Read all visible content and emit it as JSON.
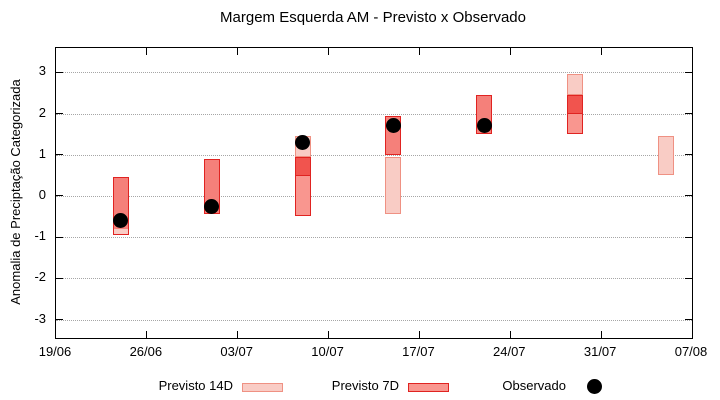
{
  "chart_data": {
    "type": "candlestick",
    "title": "Margem Esquerda AM - Previsto x Observado",
    "ylabel": "Anomalia de Preciptação Categorizada",
    "x_tick_labels": [
      "19/06",
      "26/06",
      "03/07",
      "10/07",
      "17/07",
      "24/07",
      "31/07",
      "07/08"
    ],
    "x_span_days": 49,
    "y_ticks": [
      3,
      2,
      1,
      0,
      -1,
      -2,
      -3
    ],
    "ylim": [
      -3.45,
      3.59
    ],
    "grid": "horizontal dotted lines at integer y values",
    "legend_position": "below plot, horizontal",
    "series": {
      "previsto_14d": [
        {
          "date": "24/06",
          "day": 5,
          "min": -0.95,
          "max": 0.45
        },
        {
          "date": "01/07",
          "day": 12,
          "min": -0.45,
          "max": 0.9
        },
        {
          "date": "08/07",
          "day": 19,
          "min": 0.5,
          "max": 1.45
        },
        {
          "date": "15/07",
          "day": 26,
          "min": -0.45,
          "max": 0.95
        },
        {
          "date": "22/07",
          "day": 33,
          "min": 1.5,
          "max": 2.45
        },
        {
          "date": "29/07",
          "day": 40,
          "min": 2.0,
          "max": 2.95
        },
        {
          "date": "05/08",
          "day": 47,
          "min": 0.5,
          "max": 1.45
        }
      ],
      "previsto_7d": [
        {
          "date": "24/06",
          "day": 5,
          "min": -0.8,
          "max": 0.45
        },
        {
          "date": "01/07",
          "day": 12,
          "min": -0.45,
          "max": 0.9
        },
        {
          "date": "08/07",
          "day": 19,
          "min": -0.5,
          "max": 0.95
        },
        {
          "date": "15/07",
          "day": 26,
          "min": 1.0,
          "max": 1.95
        },
        {
          "date": "22/07",
          "day": 33,
          "min": 1.5,
          "max": 2.45
        },
        {
          "date": "29/07",
          "day": 40,
          "min": 1.5,
          "max": 2.45
        }
      ],
      "observado": [
        {
          "date": "24/06",
          "day": 5,
          "value": -0.6
        },
        {
          "date": "01/07",
          "day": 12,
          "value": -0.25
        },
        {
          "date": "08/07",
          "day": 19,
          "value": 1.3
        },
        {
          "date": "15/07",
          "day": 26,
          "value": 1.7
        },
        {
          "date": "22/07",
          "day": 33,
          "value": 1.7
        }
      ]
    },
    "render_clusters": [
      {
        "day": 5,
        "fills": [
          {
            "t": 0.45,
            "b": -0.8,
            "c": "mid"
          },
          {
            "t": -0.8,
            "b": -0.95,
            "c": "pale"
          }
        ],
        "borders": [
          {
            "t": 0.45,
            "b": -0.95,
            "c": "red"
          }
        ],
        "dividers": [],
        "dot": -0.6
      },
      {
        "day": 12,
        "fills": [
          {
            "t": 0.9,
            "b": -0.45,
            "c": "mid"
          }
        ],
        "borders": [
          {
            "t": 0.9,
            "b": -0.45,
            "c": "red"
          }
        ],
        "dividers": [],
        "dot": -0.25
      },
      {
        "day": 19,
        "fills": [
          {
            "t": 1.45,
            "b": 0.95,
            "c": "pale"
          },
          {
            "t": 0.95,
            "b": 0.5,
            "c": "dark"
          },
          {
            "t": 0.5,
            "b": -0.5,
            "c": "light"
          }
        ],
        "borders": [
          {
            "t": 1.45,
            "b": 0.95,
            "c": "salmon"
          },
          {
            "t": 0.95,
            "b": -0.5,
            "c": "red"
          }
        ],
        "dividers": [
          0.5
        ],
        "dot": 1.3
      },
      {
        "day": 26,
        "fills": [
          {
            "t": 1.95,
            "b": 1.0,
            "c": "mid"
          },
          {
            "t": 0.95,
            "b": -0.45,
            "c": "pale"
          }
        ],
        "borders": [
          {
            "t": 1.95,
            "b": 1.0,
            "c": "red"
          },
          {
            "t": 0.95,
            "b": -0.45,
            "c": "salmon"
          }
        ],
        "dividers": [],
        "dot": 1.7
      },
      {
        "day": 33,
        "fills": [
          {
            "t": 2.45,
            "b": 1.5,
            "c": "mid"
          }
        ],
        "borders": [
          {
            "t": 2.45,
            "b": 1.5,
            "c": "red"
          }
        ],
        "dividers": [],
        "dot": 1.7
      },
      {
        "day": 40,
        "fills": [
          {
            "t": 2.95,
            "b": 2.45,
            "c": "pale"
          },
          {
            "t": 2.45,
            "b": 2.0,
            "c": "dark"
          },
          {
            "t": 2.0,
            "b": 1.5,
            "c": "light"
          }
        ],
        "borders": [
          {
            "t": 2.95,
            "b": 2.45,
            "c": "salmon"
          },
          {
            "t": 2.45,
            "b": 1.5,
            "c": "red"
          }
        ],
        "dividers": [
          2.0
        ],
        "dot": null
      },
      {
        "day": 47,
        "fills": [
          {
            "t": 1.45,
            "b": 0.5,
            "c": "pale"
          }
        ],
        "borders": [
          {
            "t": 1.45,
            "b": 0.5,
            "c": "salmon"
          }
        ],
        "dividers": [],
        "dot": null
      }
    ],
    "colors": {
      "pale": "#f9ccc5",
      "light": "#f9968f",
      "mid": "#f5807a",
      "dark": "#f1544e",
      "red": "#e02321",
      "salmon": "#ef9183",
      "dot": "#000000",
      "grid": "#a6a6a6",
      "axis": "#000000",
      "background": "#ffffff"
    },
    "legend": {
      "previsto14_label": "Previsto 14D",
      "previsto7_label": "Previsto 7D",
      "observado_label": "Observado"
    }
  }
}
